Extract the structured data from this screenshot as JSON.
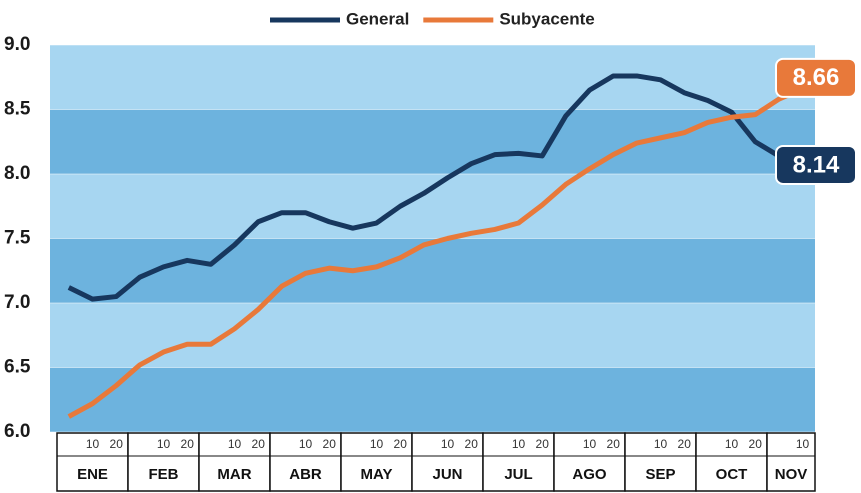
{
  "chart_data": {
    "type": "line",
    "months": [
      "ENE",
      "FEB",
      "MAR",
      "ABR",
      "MAY",
      "JUN",
      "JUL",
      "AGO",
      "SEP",
      "OCT",
      "NOV"
    ],
    "categories": [
      null,
      "10",
      "20",
      null,
      "10",
      "20",
      null,
      "10",
      "20",
      null,
      "10",
      "20",
      null,
      "10",
      "20",
      null,
      "10",
      "20",
      null,
      "10",
      "20",
      null,
      "10",
      "20",
      null,
      "10",
      "20",
      null,
      "10",
      "20",
      null,
      "10"
    ],
    "series": [
      {
        "name": "General",
        "color": "#17375e",
        "values": [
          7.12,
          7.03,
          7.05,
          7.2,
          7.28,
          7.33,
          7.3,
          7.45,
          7.63,
          7.7,
          7.7,
          7.63,
          7.58,
          7.62,
          7.75,
          7.85,
          7.97,
          8.08,
          8.15,
          8.16,
          8.14,
          8.45,
          8.65,
          8.76,
          8.76,
          8.73,
          8.63,
          8.57,
          8.48,
          8.25,
          8.14,
          null
        ],
        "value_labels": [
          null,
          null,
          null,
          null,
          null,
          null,
          null,
          null,
          null,
          null,
          null,
          null,
          null,
          null,
          null,
          null,
          null,
          null,
          null,
          null,
          null,
          null,
          null,
          null,
          null,
          null,
          null,
          null,
          null,
          null,
          "8.14",
          null
        ]
      },
      {
        "name": "Subyacente",
        "color": "#e8793a",
        "values": [
          6.12,
          6.22,
          6.36,
          6.52,
          6.62,
          6.68,
          6.68,
          6.8,
          6.95,
          7.13,
          7.23,
          7.27,
          7.25,
          7.28,
          7.35,
          7.45,
          7.5,
          7.54,
          7.57,
          7.62,
          7.76,
          7.92,
          8.04,
          8.15,
          8.24,
          8.28,
          8.32,
          8.4,
          8.44,
          8.46,
          8.58,
          8.66
        ],
        "value_labels": [
          null,
          null,
          null,
          null,
          null,
          null,
          null,
          null,
          null,
          null,
          null,
          null,
          null,
          null,
          null,
          null,
          null,
          null,
          null,
          null,
          null,
          null,
          null,
          null,
          null,
          null,
          null,
          null,
          null,
          null,
          null,
          "8.66"
        ]
      }
    ],
    "ylim": [
      6.0,
      9.0
    ],
    "yticks": [
      {
        "value": 6.0,
        "label": "6.0"
      },
      {
        "value": 6.5,
        "label": "6.5"
      },
      {
        "value": 7.0,
        "label": "7.0"
      },
      {
        "value": 7.5,
        "label": "7.5"
      },
      {
        "value": 8.0,
        "label": "8.0"
      },
      {
        "value": 8.5,
        "label": "8.5"
      },
      {
        "value": 9.0,
        "label": "9.0"
      }
    ],
    "grid": true,
    "legend": "top"
  }
}
